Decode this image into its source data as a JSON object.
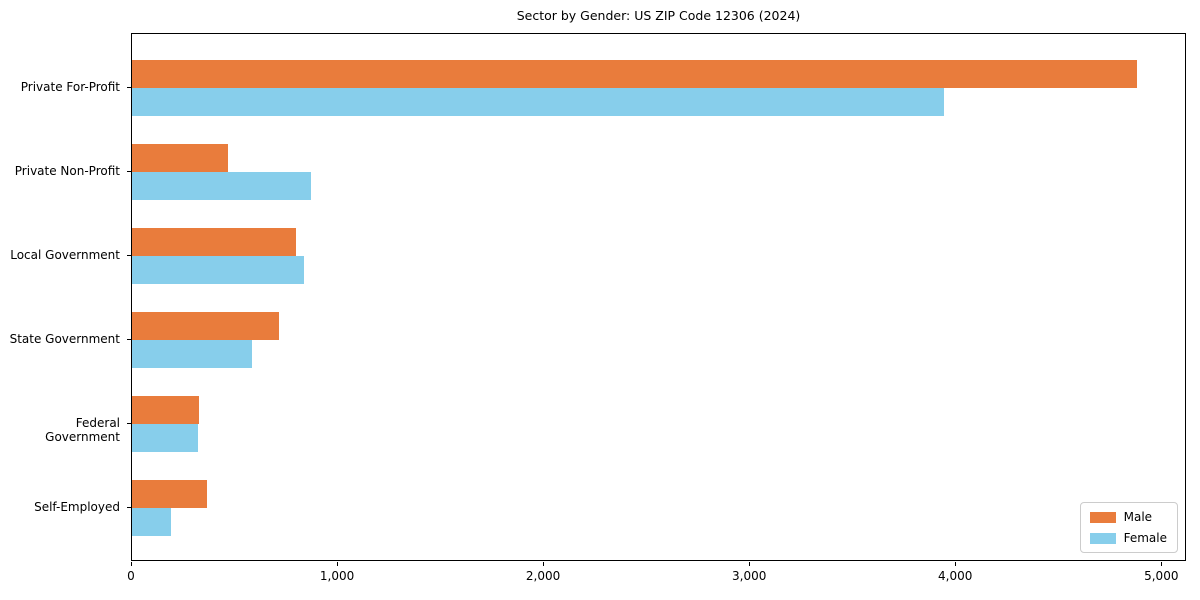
{
  "title": "Sector by Gender: US ZIP Code 12306 (2024)",
  "chart_data": {
    "type": "bar",
    "orientation": "horizontal",
    "title": "Sector by Gender: US ZIP Code 12306 (2024)",
    "categories": [
      "Private For-Profit",
      "Private Non-Profit",
      "Local Government",
      "State Government",
      "Federal Government",
      "Self-Employed"
    ],
    "series": [
      {
        "name": "Male",
        "color": "#E97C3C",
        "values": [
          4875,
          465,
          795,
          715,
          325,
          365
        ]
      },
      {
        "name": "Female",
        "color": "#87CEEB",
        "values": [
          3940,
          870,
          835,
          580,
          320,
          190
        ]
      }
    ],
    "xlabel": "",
    "ylabel": "",
    "xlim": [
      0,
      5120
    ],
    "xticks": [
      0,
      1000,
      2000,
      3000,
      4000,
      5000
    ],
    "xtick_labels": [
      "0",
      "1,000",
      "2,000",
      "3,000",
      "4,000",
      "5,000"
    ],
    "grid": false,
    "legend_position": "lower right"
  }
}
